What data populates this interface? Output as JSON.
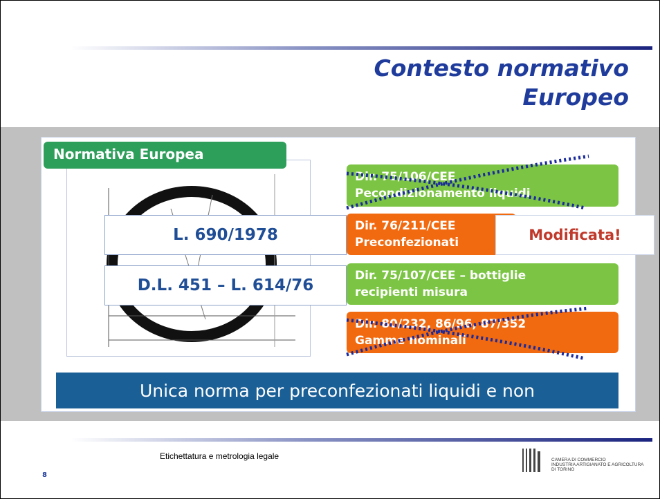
{
  "header": {
    "title_lines": [
      "Contesto normativo",
      "Europeo"
    ]
  },
  "section_label": "Normativa Europea",
  "national": [
    "L. 690/1978",
    "D.L. 451 – L. 614/76"
  ],
  "directives": [
    {
      "lines": [
        "Dir. 75/106/CEE",
        "Pecondizionamento liquidi"
      ]
    },
    {
      "lines": [
        "Dir. 76/211/CEE",
        "Preconfezionati"
      ]
    },
    {
      "lines": [
        "Dir. 75/107/CEE – bottiglie",
        "recipienti misura"
      ]
    },
    {
      "lines": [
        "Dir. 80/232, 86/96, 87/352",
        "Gamme nominali"
      ]
    }
  ],
  "note": "Modificata!",
  "banner": "Unica norma per preconfezionati liquidi e non",
  "footer": {
    "text": "Etichettatura e metrologia legale",
    "page": "8",
    "logo_lines": [
      "CAMERA DI COMMERCIO",
      "INDUSTRIA ARTIGIANATO E AGRICOLTURA",
      "DI TORINO"
    ]
  }
}
